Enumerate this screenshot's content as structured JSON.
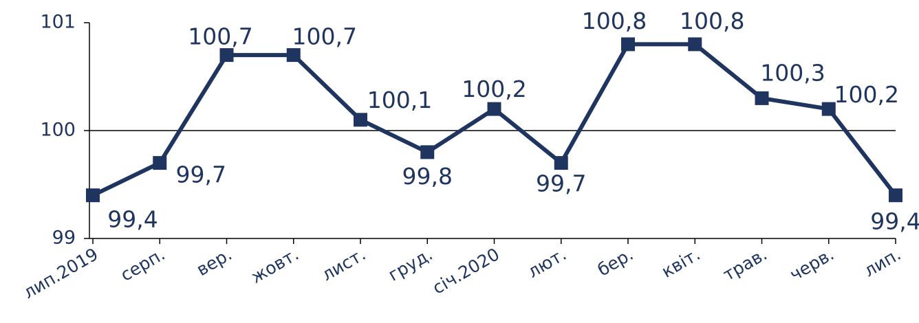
{
  "chart_data": {
    "type": "line",
    "categories": [
      "лип.2019",
      "серп.",
      "вер.",
      "жовт.",
      "лист.",
      "груд.",
      "січ.2020",
      "лют.",
      "бер.",
      "квіт.",
      "трав.",
      "черв.",
      "лип."
    ],
    "series": [
      {
        "color": "#1f3560",
        "values": [
          99.4,
          99.7,
          100.7,
          100.7,
          100.1,
          99.8,
          100.2,
          99.7,
          100.8,
          100.8,
          100.3,
          100.2,
          99.4
        ],
        "value_labels": [
          "99,4",
          "99,7",
          "100,7",
          "100,7",
          "100,1",
          "99,8",
          "100,2",
          "99,7",
          "100,8",
          "100,8",
          "100,3",
          "100,2",
          "99,4"
        ]
      }
    ],
    "ylim": [
      99,
      101
    ],
    "yticks": [
      99,
      100,
      101
    ],
    "x_axis_crossing": 100
  }
}
